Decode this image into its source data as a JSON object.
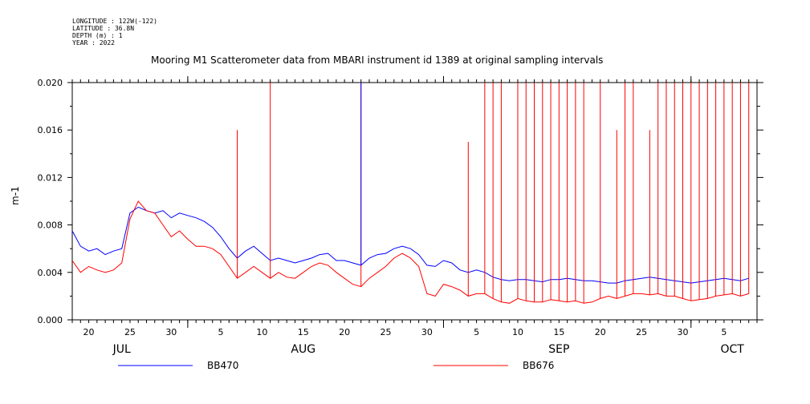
{
  "metadata": {
    "longitude": "LONGITUDE : 122W(-122)",
    "latitude": "LATITUDE : 36.8N",
    "depth": "DEPTH (m) : 1",
    "year": "YEAR : 2022"
  },
  "chart_data": {
    "type": "line",
    "title": "Mooring M1 Scatterometer data from MBARI instrument id 1389 at original sampling intervals",
    "ylabel": "m-1",
    "xlabel": "",
    "ylim": [
      0.0,
      0.02
    ],
    "y_ticks": [
      "0.000",
      "0.004",
      "0.008",
      "0.012",
      "0.016",
      "0.020"
    ],
    "x_domain_days": [
      "2022-07-18",
      "2022-10-09"
    ],
    "x_day_ticks": [
      {
        "day": "2022-07-20",
        "label": "20"
      },
      {
        "day": "2022-07-25",
        "label": "25"
      },
      {
        "day": "2022-07-30",
        "label": "30"
      },
      {
        "day": "2022-08-05",
        "label": "5"
      },
      {
        "day": "2022-08-10",
        "label": "10"
      },
      {
        "day": "2022-08-15",
        "label": "15"
      },
      {
        "day": "2022-08-20",
        "label": "20"
      },
      {
        "day": "2022-08-25",
        "label": "25"
      },
      {
        "day": "2022-08-30",
        "label": "30"
      },
      {
        "day": "2022-09-05",
        "label": "5"
      },
      {
        "day": "2022-09-10",
        "label": "10"
      },
      {
        "day": "2022-09-15",
        "label": "15"
      },
      {
        "day": "2022-09-20",
        "label": "20"
      },
      {
        "day": "2022-09-25",
        "label": "25"
      },
      {
        "day": "2022-09-30",
        "label": "30"
      },
      {
        "day": "2022-10-05",
        "label": "5"
      }
    ],
    "month_labels": [
      {
        "day": "2022-07-24",
        "label": "JUL"
      },
      {
        "day": "2022-08-15",
        "label": "AUG"
      },
      {
        "day": "2022-09-15",
        "label": "SEP"
      },
      {
        "day": "2022-10-06",
        "label": "OCT"
      }
    ],
    "month_boundaries": [
      "2022-08-01",
      "2022-09-01",
      "2022-10-01"
    ],
    "legend_placement": "bottom",
    "series": [
      {
        "name": "BB470",
        "color": "#0000ff",
        "x": [
          "2022-07-18",
          "2022-07-19",
          "2022-07-20",
          "2022-07-21",
          "2022-07-22",
          "2022-07-23",
          "2022-07-24",
          "2022-07-25",
          "2022-07-26",
          "2022-07-27",
          "2022-07-28",
          "2022-07-29",
          "2022-07-30",
          "2022-07-31",
          "2022-08-01",
          "2022-08-02",
          "2022-08-03",
          "2022-08-04",
          "2022-08-05",
          "2022-08-06",
          "2022-08-07",
          "2022-08-08",
          "2022-08-09",
          "2022-08-10",
          "2022-08-11",
          "2022-08-12",
          "2022-08-13",
          "2022-08-14",
          "2022-08-15",
          "2022-08-16",
          "2022-08-17",
          "2022-08-18",
          "2022-08-19",
          "2022-08-20",
          "2022-08-21",
          "2022-08-22",
          "2022-08-23",
          "2022-08-24",
          "2022-08-25",
          "2022-08-26",
          "2022-08-27",
          "2022-08-28",
          "2022-08-29",
          "2022-08-30",
          "2022-08-31",
          "2022-09-01",
          "2022-09-02",
          "2022-09-03",
          "2022-09-04",
          "2022-09-05",
          "2022-09-06",
          "2022-09-07",
          "2022-09-08",
          "2022-09-09",
          "2022-09-10",
          "2022-09-11",
          "2022-09-12",
          "2022-09-13",
          "2022-09-14",
          "2022-09-15",
          "2022-09-16",
          "2022-09-17",
          "2022-09-18",
          "2022-09-19",
          "2022-09-20",
          "2022-09-21",
          "2022-09-22",
          "2022-09-23",
          "2022-09-24",
          "2022-09-25",
          "2022-09-26",
          "2022-09-27",
          "2022-09-28",
          "2022-09-29",
          "2022-09-30",
          "2022-10-01",
          "2022-10-02",
          "2022-10-03",
          "2022-10-04",
          "2022-10-05",
          "2022-10-06",
          "2022-10-07",
          "2022-10-08"
        ],
        "values": [
          0.0075,
          0.0062,
          0.0058,
          0.006,
          0.0055,
          0.0058,
          0.006,
          0.009,
          0.0095,
          0.0092,
          0.009,
          0.0092,
          0.0086,
          0.009,
          0.0088,
          0.0086,
          0.0083,
          0.0078,
          0.007,
          0.006,
          0.0052,
          0.0058,
          0.0062,
          0.0056,
          0.005,
          0.0052,
          0.005,
          0.0048,
          0.005,
          0.0052,
          0.0055,
          0.0056,
          0.005,
          0.005,
          0.0048,
          0.0046,
          0.0052,
          0.0055,
          0.0056,
          0.006,
          0.0062,
          0.006,
          0.0055,
          0.0046,
          0.0045,
          0.005,
          0.0048,
          0.0042,
          0.004,
          0.0042,
          0.004,
          0.0036,
          0.0034,
          0.0033,
          0.0034,
          0.0034,
          0.0033,
          0.0032,
          0.0034,
          0.0034,
          0.0035,
          0.0034,
          0.0033,
          0.0033,
          0.0032,
          0.0031,
          0.0031,
          0.0033,
          0.0034,
          0.0035,
          0.0036,
          0.0035,
          0.0034,
          0.0033,
          0.0032,
          0.0031,
          0.0032,
          0.0033,
          0.0034,
          0.0035,
          0.0034,
          0.0033,
          0.0035
        ]
      },
      {
        "name": "BB676",
        "color": "#ff0000",
        "x": [
          "2022-07-18",
          "2022-07-19",
          "2022-07-20",
          "2022-07-21",
          "2022-07-22",
          "2022-07-23",
          "2022-07-24",
          "2022-07-25",
          "2022-07-26",
          "2022-07-27",
          "2022-07-28",
          "2022-07-29",
          "2022-07-30",
          "2022-07-31",
          "2022-08-01",
          "2022-08-02",
          "2022-08-03",
          "2022-08-04",
          "2022-08-05",
          "2022-08-06",
          "2022-08-07",
          "2022-08-08",
          "2022-08-09",
          "2022-08-10",
          "2022-08-11",
          "2022-08-12",
          "2022-08-13",
          "2022-08-14",
          "2022-08-15",
          "2022-08-16",
          "2022-08-17",
          "2022-08-18",
          "2022-08-19",
          "2022-08-20",
          "2022-08-21",
          "2022-08-22",
          "2022-08-23",
          "2022-08-24",
          "2022-08-25",
          "2022-08-26",
          "2022-08-27",
          "2022-08-28",
          "2022-08-29",
          "2022-08-30",
          "2022-08-31",
          "2022-09-01",
          "2022-09-02",
          "2022-09-03",
          "2022-09-04",
          "2022-09-05",
          "2022-09-06",
          "2022-09-07",
          "2022-09-08",
          "2022-09-09",
          "2022-09-10",
          "2022-09-11",
          "2022-09-12",
          "2022-09-13",
          "2022-09-14",
          "2022-09-15",
          "2022-09-16",
          "2022-09-17",
          "2022-09-18",
          "2022-09-19",
          "2022-09-20",
          "2022-09-21",
          "2022-09-22",
          "2022-09-23",
          "2022-09-24",
          "2022-09-25",
          "2022-09-26",
          "2022-09-27",
          "2022-09-28",
          "2022-09-29",
          "2022-09-30",
          "2022-10-01",
          "2022-10-02",
          "2022-10-03",
          "2022-10-04",
          "2022-10-05",
          "2022-10-06",
          "2022-10-07",
          "2022-10-08"
        ],
        "values": [
          0.005,
          0.004,
          0.0045,
          0.0042,
          0.004,
          0.0042,
          0.0048,
          0.0085,
          0.01,
          0.0092,
          0.009,
          0.008,
          0.007,
          0.0075,
          0.0068,
          0.0062,
          0.0062,
          0.006,
          0.0055,
          0.0045,
          0.0035,
          0.004,
          0.0045,
          0.004,
          0.0035,
          0.004,
          0.0036,
          0.0035,
          0.004,
          0.0045,
          0.0048,
          0.0046,
          0.004,
          0.0035,
          0.003,
          0.0028,
          0.0035,
          0.004,
          0.0045,
          0.0052,
          0.0056,
          0.0052,
          0.0045,
          0.0022,
          0.002,
          0.003,
          0.0028,
          0.0025,
          0.002,
          0.0022,
          0.0022,
          0.0018,
          0.0015,
          0.0014,
          0.0018,
          0.0016,
          0.0015,
          0.0015,
          0.0017,
          0.0016,
          0.0015,
          0.0016,
          0.0014,
          0.0015,
          0.0018,
          0.002,
          0.0018,
          0.002,
          0.0022,
          0.0022,
          0.0021,
          0.0022,
          0.002,
          0.002,
          0.0018,
          0.0016,
          0.0017,
          0.0018,
          0.002,
          0.0021,
          0.0022,
          0.002,
          0.0022
        ]
      }
    ],
    "spikes": [
      {
        "series": "BB676",
        "x": "2022-08-07",
        "value": 0.016
      },
      {
        "series": "BB676",
        "x": "2022-08-11",
        "value": 0.02
      },
      {
        "series": "BB676",
        "x": "2022-08-22",
        "value": 0.02
      },
      {
        "series": "BB470",
        "x": "2022-08-22",
        "value": 0.02
      },
      {
        "series": "BB676",
        "x": "2022-09-04",
        "value": 0.015
      },
      {
        "series": "BB676",
        "x": "2022-09-06",
        "value": 0.02
      },
      {
        "series": "BB676",
        "x": "2022-09-07",
        "value": 0.02
      },
      {
        "series": "BB676",
        "x": "2022-09-08",
        "value": 0.02
      },
      {
        "series": "BB676",
        "x": "2022-09-10",
        "value": 0.02
      },
      {
        "series": "BB676",
        "x": "2022-09-11",
        "value": 0.02
      },
      {
        "series": "BB676",
        "x": "2022-09-12",
        "value": 0.02
      },
      {
        "series": "BB676",
        "x": "2022-09-13",
        "value": 0.02
      },
      {
        "series": "BB676",
        "x": "2022-09-14",
        "value": 0.02
      },
      {
        "series": "BB676",
        "x": "2022-09-15",
        "value": 0.02
      },
      {
        "series": "BB676",
        "x": "2022-09-16",
        "value": 0.02
      },
      {
        "series": "BB676",
        "x": "2022-09-17",
        "value": 0.02
      },
      {
        "series": "BB676",
        "x": "2022-09-18",
        "value": 0.02
      },
      {
        "series": "BB676",
        "x": "2022-09-20",
        "value": 0.02
      },
      {
        "series": "BB676",
        "x": "2022-09-22",
        "value": 0.016
      },
      {
        "series": "BB676",
        "x": "2022-09-23",
        "value": 0.02
      },
      {
        "series": "BB676",
        "x": "2022-09-24",
        "value": 0.02
      },
      {
        "series": "BB676",
        "x": "2022-09-26",
        "value": 0.016
      },
      {
        "series": "BB676",
        "x": "2022-09-27",
        "value": 0.02
      },
      {
        "series": "BB676",
        "x": "2022-09-28",
        "value": 0.02
      },
      {
        "series": "BB676",
        "x": "2022-09-29",
        "value": 0.02
      },
      {
        "series": "BB676",
        "x": "2022-09-30",
        "value": 0.02
      },
      {
        "series": "BB676",
        "x": "2022-10-01",
        "value": 0.02
      },
      {
        "series": "BB676",
        "x": "2022-10-02",
        "value": 0.02
      },
      {
        "series": "BB676",
        "x": "2022-10-03",
        "value": 0.02
      },
      {
        "series": "BB676",
        "x": "2022-10-04",
        "value": 0.02
      },
      {
        "series": "BB676",
        "x": "2022-10-05",
        "value": 0.02
      },
      {
        "series": "BB676",
        "x": "2022-10-06",
        "value": 0.02
      },
      {
        "series": "BB676",
        "x": "2022-10-07",
        "value": 0.02
      },
      {
        "series": "BB676",
        "x": "2022-10-08",
        "value": 0.02
      }
    ]
  }
}
